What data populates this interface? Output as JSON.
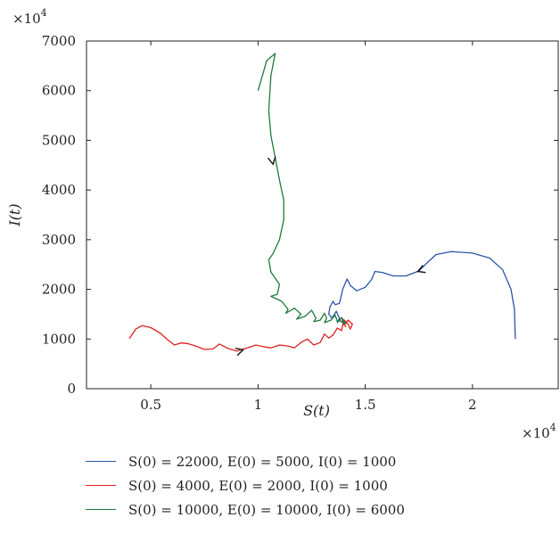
{
  "chart_data": {
    "type": "line",
    "xlabel": "S(t)",
    "ylabel": "I(t)",
    "top_multiplier": "×10^4",
    "bottom_multiplier": "×10^4",
    "xlim": [
      0.2,
      2.4
    ],
    "ylim": [
      0,
      7000
    ],
    "x_ticks": [
      0.5,
      1,
      1.5,
      2
    ],
    "x_tick_labels": [
      "0.5",
      "1",
      "1.5",
      "2"
    ],
    "y_ticks": [
      0,
      1000,
      2000,
      3000,
      4000,
      5000,
      6000,
      7000
    ],
    "y_tick_labels": [
      "0",
      "1000",
      "2000",
      "3000",
      "4000",
      "5000",
      "6000",
      "7000"
    ],
    "grid": false,
    "legend_position": "bottom",
    "series": [
      {
        "name": "S(0) = 22000, E(0) = 5000, I(0) = 1000",
        "color": "#2a55a8",
        "points": [
          [
            2.2,
            1000
          ],
          [
            2.196,
            1600
          ],
          [
            2.18,
            2000
          ],
          [
            2.14,
            2400
          ],
          [
            2.08,
            2630
          ],
          [
            2.0,
            2730
          ],
          [
            1.9,
            2760
          ],
          [
            1.83,
            2700
          ],
          [
            1.79,
            2540
          ],
          [
            1.75,
            2370
          ],
          [
            1.69,
            2270
          ],
          [
            1.63,
            2270
          ],
          [
            1.58,
            2340
          ],
          [
            1.545,
            2360
          ],
          [
            1.53,
            2200
          ],
          [
            1.5,
            2040
          ],
          [
            1.46,
            1970
          ],
          [
            1.43,
            2080
          ],
          [
            1.415,
            2210
          ],
          [
            1.395,
            2000
          ],
          [
            1.38,
            1720
          ],
          [
            1.36,
            1690
          ],
          [
            1.35,
            1760
          ],
          [
            1.335,
            1640
          ],
          [
            1.33,
            1500
          ],
          [
            1.345,
            1420
          ],
          [
            1.365,
            1560
          ],
          [
            1.38,
            1420
          ],
          [
            1.37,
            1330
          ],
          [
            1.39,
            1430
          ],
          [
            1.4,
            1320
          ]
        ],
        "arrow_at": [
          1.745,
          2360
        ]
      },
      {
        "name": "S(0) = 4000, E(0) = 2000, I(0) = 1000",
        "color": "#e02020",
        "points": [
          [
            0.4,
            1010
          ],
          [
            0.43,
            1200
          ],
          [
            0.46,
            1270
          ],
          [
            0.5,
            1230
          ],
          [
            0.54,
            1130
          ],
          [
            0.58,
            980
          ],
          [
            0.61,
            880
          ],
          [
            0.64,
            920
          ],
          [
            0.67,
            910
          ],
          [
            0.71,
            860
          ],
          [
            0.75,
            790
          ],
          [
            0.79,
            800
          ],
          [
            0.82,
            900
          ],
          [
            0.86,
            810
          ],
          [
            0.9,
            760
          ],
          [
            0.95,
            820
          ],
          [
            0.99,
            880
          ],
          [
            1.02,
            850
          ],
          [
            1.06,
            820
          ],
          [
            1.1,
            880
          ],
          [
            1.14,
            860
          ],
          [
            1.17,
            820
          ],
          [
            1.2,
            930
          ],
          [
            1.23,
            1000
          ],
          [
            1.26,
            880
          ],
          [
            1.29,
            930
          ],
          [
            1.31,
            1100
          ],
          [
            1.33,
            1020
          ],
          [
            1.35,
            1080
          ],
          [
            1.37,
            1220
          ],
          [
            1.39,
            1170
          ],
          [
            1.4,
            1390
          ],
          [
            1.42,
            1300
          ],
          [
            1.43,
            1200
          ],
          [
            1.44,
            1300
          ],
          [
            1.42,
            1380
          ],
          [
            1.4,
            1300
          ],
          [
            1.41,
            1240
          ]
        ],
        "arrow_at": [
          0.93,
          780
        ]
      },
      {
        "name": "S(0) = 10000, E(0) = 10000, I(0) = 6000",
        "color": "#1e7a3c",
        "points": [
          [
            1.0,
            6000
          ],
          [
            1.04,
            6600
          ],
          [
            1.08,
            6750
          ],
          [
            1.06,
            6300
          ],
          [
            1.05,
            5600
          ],
          [
            1.06,
            5100
          ],
          [
            1.08,
            4650
          ],
          [
            1.1,
            4200
          ],
          [
            1.12,
            3800
          ],
          [
            1.12,
            3400
          ],
          [
            1.1,
            3000
          ],
          [
            1.07,
            2720
          ],
          [
            1.05,
            2600
          ],
          [
            1.06,
            2350
          ],
          [
            1.1,
            2100
          ],
          [
            1.09,
            1900
          ],
          [
            1.06,
            1860
          ],
          [
            1.11,
            1760
          ],
          [
            1.14,
            1600
          ],
          [
            1.13,
            1520
          ],
          [
            1.17,
            1620
          ],
          [
            1.2,
            1500
          ],
          [
            1.18,
            1400
          ],
          [
            1.22,
            1460
          ],
          [
            1.25,
            1580
          ],
          [
            1.27,
            1420
          ],
          [
            1.26,
            1350
          ],
          [
            1.29,
            1380
          ],
          [
            1.31,
            1520
          ],
          [
            1.32,
            1420
          ],
          [
            1.31,
            1330
          ],
          [
            1.34,
            1380
          ],
          [
            1.36,
            1480
          ],
          [
            1.37,
            1350
          ],
          [
            1.39,
            1430
          ],
          [
            1.41,
            1300
          ],
          [
            1.38,
            1370
          ],
          [
            1.4,
            1340
          ]
        ],
        "arrow_at": [
          1.07,
          4520
        ]
      }
    ]
  }
}
